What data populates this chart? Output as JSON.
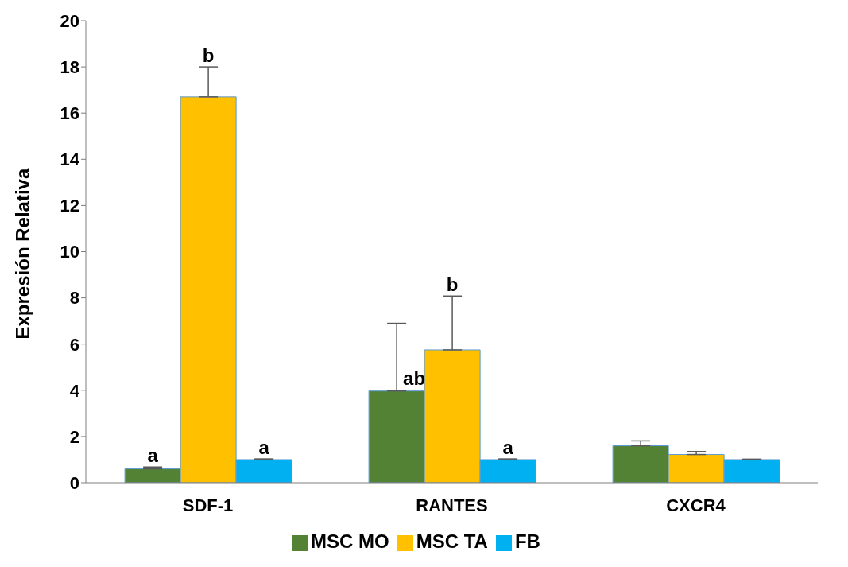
{
  "chart_data": {
    "type": "bar",
    "ylabel": "Expresión Relativa",
    "categories": [
      "SDF-1",
      "RANTES",
      "CXCR4"
    ],
    "series": [
      {
        "name": "MSC MO",
        "color": "#548235",
        "values": [
          0.6,
          3.97,
          1.6
        ],
        "errors": [
          [
            0.6,
            0.68
          ],
          [
            3.97,
            6.9
          ],
          [
            1.6,
            1.81
          ]
        ],
        "value_labels": [
          "a",
          "ab",
          null
        ]
      },
      {
        "name": "MSC TA",
        "color": "#ffc000",
        "values": [
          16.7,
          5.75,
          1.22
        ],
        "errors": [
          [
            16.7,
            18.0
          ],
          [
            5.75,
            8.08
          ],
          [
            1.22,
            1.35
          ]
        ],
        "value_labels": [
          "b",
          "b",
          null
        ]
      },
      {
        "name": "FB",
        "color": "#00b0f0",
        "values": [
          1.0,
          1.0,
          1.0
        ],
        "errors": [
          [
            1.0,
            1.03
          ],
          [
            1.0,
            1.03
          ],
          [
            1.0,
            1.02
          ]
        ],
        "value_labels": [
          "a",
          "a",
          null
        ]
      }
    ],
    "ylim": [
      0,
      20
    ],
    "yticks": [
      0,
      2,
      4,
      6,
      8,
      10,
      12,
      14,
      16,
      18,
      20
    ],
    "grid": false,
    "legend": "bottom"
  }
}
